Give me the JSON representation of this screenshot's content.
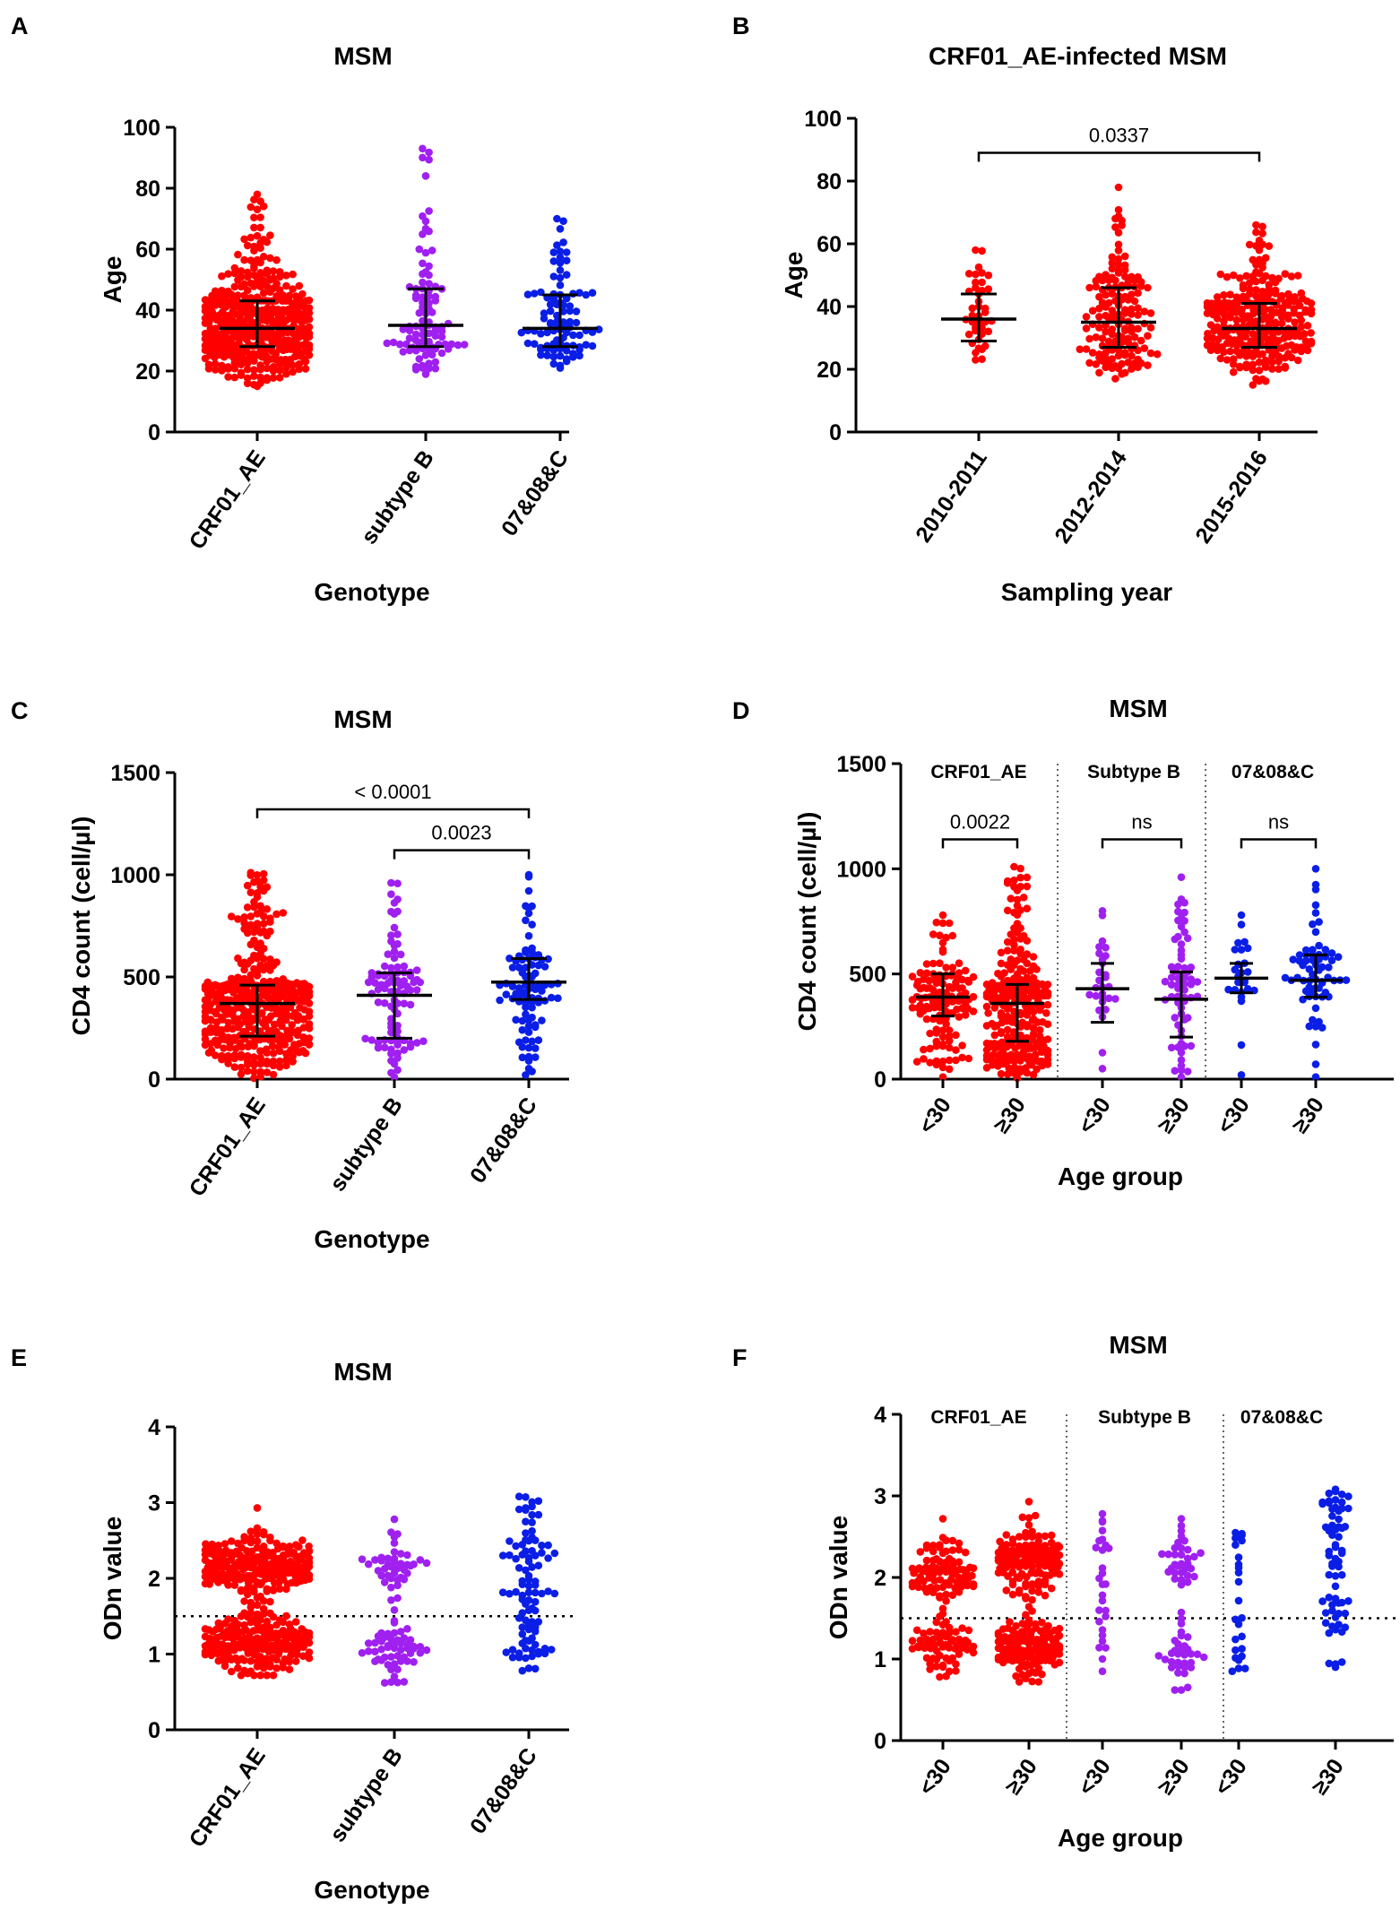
{
  "colors": {
    "red": "#ff0000",
    "purple": "#a020f0",
    "blue": "#0a1ee6",
    "axis": "#000000"
  },
  "chart_data": [
    {
      "panel": "A",
      "type": "scatter",
      "title": "MSM",
      "xlabel": "Genotype",
      "ylabel": "Age",
      "ylim": [
        0,
        100
      ],
      "yticks": [
        0,
        20,
        40,
        60,
        80,
        100
      ],
      "categories": [
        "CRF01_AE",
        "subtype B",
        "07&08&C"
      ],
      "series": [
        {
          "name": "CRF01_AE",
          "color": "red",
          "n": 420,
          "min": 15,
          "max": 78,
          "q1": 28,
          "median": 34,
          "q3": 43
        },
        {
          "name": "subtype B",
          "color": "purple",
          "n": 95,
          "min": 19,
          "max": 93,
          "q1": 28,
          "median": 35,
          "q3": 47
        },
        {
          "name": "07&08&C",
          "color": "blue",
          "n": 95,
          "min": 21,
          "max": 70,
          "q1": 28,
          "median": 34,
          "q3": 45
        }
      ],
      "annotations": []
    },
    {
      "panel": "B",
      "type": "scatter",
      "title": "CRF01_AE-infected MSM",
      "xlabel": "Sampling year",
      "ylabel": "Age",
      "ylim": [
        0,
        100
      ],
      "yticks": [
        0,
        20,
        40,
        60,
        80,
        100
      ],
      "categories": [
        "2010-2011",
        "2012-2014",
        "2015-2016"
      ],
      "series": [
        {
          "name": "2010-2011",
          "color": "red",
          "n": 40,
          "min": 23,
          "max": 58,
          "q1": 29,
          "median": 36,
          "q3": 44
        },
        {
          "name": "2012-2014",
          "color": "red",
          "n": 150,
          "min": 17,
          "max": 78,
          "q1": 27,
          "median": 35,
          "q3": 46
        },
        {
          "name": "2015-2016",
          "color": "red",
          "n": 260,
          "min": 15,
          "max": 66,
          "q1": 27,
          "median": 33,
          "q3": 41
        }
      ],
      "annotations": [
        {
          "text": "0.0337",
          "from": 0,
          "to": 2,
          "y": 89
        }
      ]
    },
    {
      "panel": "C",
      "type": "scatter",
      "title": "MSM",
      "xlabel": "Genotype",
      "ylabel": "CD4 count (cell/µl)",
      "ylim": [
        0,
        1500
      ],
      "yticks": [
        0,
        500,
        1000,
        1500
      ],
      "categories": [
        "CRF01_AE",
        "subtype B",
        "07&08&C"
      ],
      "series": [
        {
          "name": "CRF01_AE",
          "color": "red",
          "n": 400,
          "min": 5,
          "max": 1010,
          "q1": 210,
          "median": 370,
          "q3": 460
        },
        {
          "name": "subtype B",
          "color": "purple",
          "n": 95,
          "min": 10,
          "max": 960,
          "q1": 200,
          "median": 410,
          "q3": 520
        },
        {
          "name": "07&08&C",
          "color": "blue",
          "n": 90,
          "min": 20,
          "max": 1000,
          "q1": 390,
          "median": 475,
          "q3": 590
        }
      ],
      "annotations": [
        {
          "text": "< 0.0001",
          "from": 0,
          "to": 2,
          "y": 1320
        },
        {
          "text": "0.0023",
          "from": 1,
          "to": 2,
          "y": 1120
        }
      ]
    },
    {
      "panel": "D",
      "type": "scatter",
      "title": "MSM",
      "xlabel": "Age group",
      "ylabel": "CD4 count (cell/µl)",
      "ylim": [
        0,
        1500
      ],
      "yticks": [
        0,
        500,
        1000,
        1500
      ],
      "categories": [
        "<30",
        "≥30",
        "<30",
        "≥30",
        "<30",
        "≥30"
      ],
      "groups": [
        "CRF01_AE",
        "Subtype B",
        "07&08&C"
      ],
      "series": [
        {
          "name": "CRF01_AE <30",
          "color": "red",
          "n": 130,
          "min": 10,
          "max": 780,
          "q1": 300,
          "median": 390,
          "q3": 500
        },
        {
          "name": "CRF01_AE ≥30",
          "color": "red",
          "n": 270,
          "min": 5,
          "max": 1010,
          "q1": 180,
          "median": 360,
          "q3": 450
        },
        {
          "name": "Subtype B <30",
          "color": "purple",
          "n": 28,
          "min": 50,
          "max": 800,
          "q1": 270,
          "median": 430,
          "q3": 550
        },
        {
          "name": "Subtype B ≥30",
          "color": "purple",
          "n": 65,
          "min": 10,
          "max": 960,
          "q1": 200,
          "median": 380,
          "q3": 510
        },
        {
          "name": "07&08&C <30",
          "color": "blue",
          "n": 25,
          "min": 20,
          "max": 780,
          "q1": 410,
          "median": 480,
          "q3": 550
        },
        {
          "name": "07&08&C ≥30",
          "color": "blue",
          "n": 65,
          "min": 10,
          "max": 1000,
          "q1": 390,
          "median": 470,
          "q3": 590
        }
      ],
      "annotations": [
        {
          "text": "0.0022",
          "from": 0,
          "to": 1,
          "y": 1140
        },
        {
          "text": "ns",
          "from": 2,
          "to": 3,
          "y": 1140
        },
        {
          "text": "ns",
          "from": 4,
          "to": 5,
          "y": 1140
        }
      ]
    },
    {
      "panel": "E",
      "type": "scatter",
      "title": "MSM",
      "xlabel": "Genotype",
      "ylabel": "ODn value",
      "ylim": [
        0,
        4
      ],
      "yticks": [
        0,
        1,
        2,
        3,
        4
      ],
      "threshold": 1.5,
      "categories": [
        "CRF01_AE",
        "subtype B",
        "07&08&C"
      ],
      "series": [
        {
          "name": "CRF01_AE",
          "color": "red",
          "n": 420,
          "min": 0.72,
          "max": 2.93,
          "bimodal": [
            1.15,
            2.15
          ]
        },
        {
          "name": "subtype B",
          "color": "purple",
          "n": 95,
          "min": 0.62,
          "max": 2.78,
          "bimodal": [
            1.1,
            2.2
          ]
        },
        {
          "name": "07&08&C",
          "color": "blue",
          "n": 95,
          "min": 0.78,
          "max": 3.08,
          "uniform": true
        }
      ],
      "annotations": []
    },
    {
      "panel": "F",
      "type": "scatter",
      "title": "MSM",
      "xlabel": "Age group",
      "ylabel": "ODn value",
      "ylim": [
        0,
        4
      ],
      "yticks": [
        0,
        1,
        2,
        3,
        4
      ],
      "threshold": 1.5,
      "categories": [
        "<30",
        "≥30",
        "<30",
        "≥30",
        "<30",
        "≥30"
      ],
      "groups": [
        "CRF01_AE",
        "Subtype B",
        "07&08&C"
      ],
      "series": [
        {
          "name": "CRF01_AE <30",
          "color": "red",
          "n": 150,
          "min": 0.78,
          "max": 2.72,
          "bimodal": [
            1.15,
            2.1
          ]
        },
        {
          "name": "CRF01_AE ≥30",
          "color": "red",
          "n": 270,
          "min": 0.72,
          "max": 2.93,
          "bimodal": [
            1.15,
            2.2
          ]
        },
        {
          "name": "Subtype B <30",
          "color": "purple",
          "n": 28,
          "min": 0.85,
          "max": 2.78,
          "uniform": true
        },
        {
          "name": "Subtype B ≥30",
          "color": "purple",
          "n": 65,
          "min": 0.62,
          "max": 2.72,
          "bimodal": [
            1.05,
            2.25
          ]
        },
        {
          "name": "07&08&C <30",
          "color": "blue",
          "n": 25,
          "min": 0.85,
          "max": 2.55,
          "uniform": true
        },
        {
          "name": "07&08&C ≥30",
          "color": "blue",
          "n": 65,
          "min": 0.9,
          "max": 3.08,
          "uniform": true
        }
      ],
      "annotations": []
    }
  ]
}
